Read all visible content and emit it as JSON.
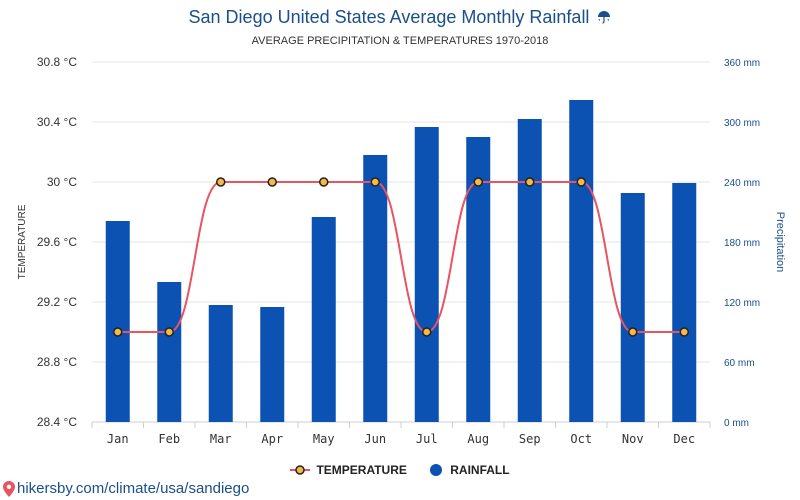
{
  "header": {
    "title": "San Diego United States Average Monthly Rainfall",
    "subtitle": "AVERAGE PRECIPITATION & TEMPERATURES 1970-2018",
    "title_icon": "umbrella-icon"
  },
  "legend": {
    "temperature_label": "TEMPERATURE",
    "rainfall_label": "RAINFALL"
  },
  "footer": {
    "source_text": "hikersby.com/climate/usa/sandiego",
    "source_icon": "location-pin-icon"
  },
  "colors": {
    "bar": "#0b52b3",
    "line": "#e8545f",
    "marker_fill": "#f7b84a",
    "marker_stroke": "#222222",
    "right_axis": "#1a4f8b",
    "grid": "#e6e6e6"
  },
  "chart_data": {
    "type": "bar",
    "categories": [
      "Jan",
      "Feb",
      "Mar",
      "Apr",
      "May",
      "Jun",
      "Jul",
      "Aug",
      "Sep",
      "Oct",
      "Nov",
      "Dec"
    ],
    "series": [
      {
        "name": "RAINFALL",
        "type": "bar",
        "axis": "right",
        "values": [
          201,
          140,
          117,
          115,
          205,
          267,
          295,
          285,
          303,
          322,
          229,
          239
        ]
      },
      {
        "name": "TEMPERATURE",
        "type": "line",
        "axis": "left",
        "values": [
          29,
          29,
          30,
          30,
          30,
          30,
          29,
          30,
          30,
          30,
          29,
          29
        ]
      }
    ],
    "y_left": {
      "label": "TEMPERATURE",
      "range": [
        28.4,
        30.8
      ],
      "ticks": [
        28.4,
        28.8,
        29.2,
        29.6,
        30,
        30.4,
        30.8
      ],
      "tick_labels": [
        "28.4 °C",
        "28.8 °C",
        "29.2 °C",
        "29.6 °C",
        "30 °C",
        "30.4 °C",
        "30.8 °C"
      ]
    },
    "y_right": {
      "label": "Precipitation",
      "range": [
        0,
        360
      ],
      "ticks": [
        0,
        60,
        120,
        180,
        240,
        300,
        360
      ],
      "tick_labels": [
        "0 mm",
        "60 mm",
        "120 mm",
        "180 mm",
        "240 mm",
        "300 mm",
        "360 mm"
      ]
    },
    "grid": true,
    "legend_position": "bottom-center"
  }
}
